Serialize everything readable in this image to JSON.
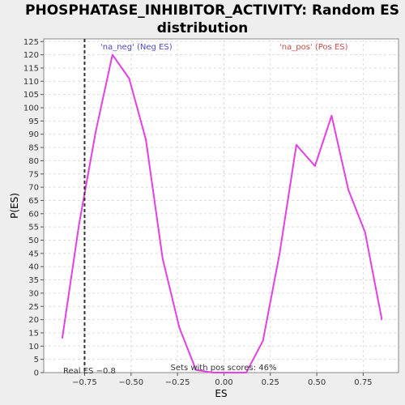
{
  "chart_data": {
    "type": "line",
    "title_line1": "PHOSPHATASE_INHIBITOR_ACTIVITY: Random ES",
    "title_line2": "distribution",
    "xlabel": "ES",
    "ylabel": "P(ES)",
    "xlim": [
      -0.97,
      0.94
    ],
    "ylim": [
      0,
      126
    ],
    "x_ticks": [
      -0.75,
      -0.5,
      -0.25,
      0.0,
      0.25,
      0.5,
      0.75
    ],
    "x_tick_labels": [
      "−0.75",
      "−0.50",
      "−0.25",
      "0.00",
      "0.25",
      "0.50",
      "0.75"
    ],
    "y_ticks": [
      0,
      5,
      10,
      15,
      20,
      25,
      30,
      35,
      40,
      45,
      50,
      55,
      60,
      65,
      70,
      75,
      80,
      85,
      90,
      95,
      100,
      105,
      110,
      115,
      120,
      125
    ],
    "grid": true,
    "series": [
      {
        "color": "#e83ee8",
        "x": [
          -0.87,
          -0.78,
          -0.69,
          -0.6,
          -0.51,
          -0.42,
          -0.33,
          -0.24,
          -0.15,
          -0.06,
          0.03,
          0.12,
          0.21,
          0.3,
          0.39,
          0.49,
          0.58,
          0.67,
          0.76,
          0.85
        ],
        "y": [
          13,
          56,
          91,
          120,
          111,
          88,
          43,
          17,
          1,
          0,
          0,
          0,
          12,
          45,
          86,
          78,
          97,
          69,
          53,
          20
        ]
      }
    ],
    "real_es": {
      "x": -0.75,
      "label": "Real ES −0.8"
    },
    "annotations": {
      "neg_label": "'na_neg' (Neg ES)",
      "neg_color": "#4b4bd6",
      "pos_label": "'na_pos' (Pos ES)",
      "pos_color": "#d64b4b",
      "pos_scores_label": "Sets with pos scores: 46%"
    }
  }
}
